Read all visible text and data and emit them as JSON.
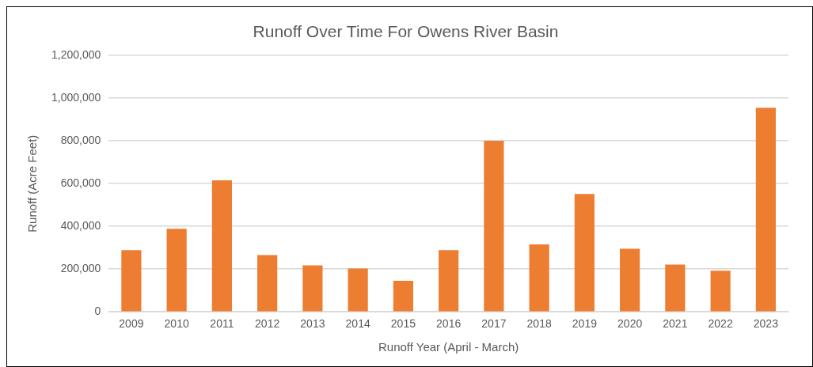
{
  "chart_data": {
    "type": "bar",
    "title": "Runoff Over Time For Owens River Basin",
    "xlabel": "Runoff Year (April - March)",
    "ylabel": "Runoff (Acre Feet)",
    "categories": [
      "2009",
      "2010",
      "2011",
      "2012",
      "2013",
      "2014",
      "2015",
      "2016",
      "2017",
      "2018",
      "2019",
      "2020",
      "2021",
      "2022",
      "2023"
    ],
    "values": [
      289000,
      389000,
      616000,
      266000,
      217000,
      203000,
      145000,
      289000,
      801000,
      316000,
      552000,
      295000,
      221000,
      192000,
      955000
    ],
    "color": "#ed7d31",
    "ylim": [
      0,
      1200000
    ],
    "yticks": [
      {
        "value": 0,
        "label": "0"
      },
      {
        "value": 200000,
        "label": "200,000"
      },
      {
        "value": 400000,
        "label": "400,000"
      },
      {
        "value": 600000,
        "label": "600,000"
      },
      {
        "value": 800000,
        "label": "800,000"
      },
      {
        "value": 1000000,
        "label": "1,000,000"
      },
      {
        "value": 1200000,
        "label": "1,200,000"
      }
    ],
    "grid": "y",
    "legend": false
  }
}
